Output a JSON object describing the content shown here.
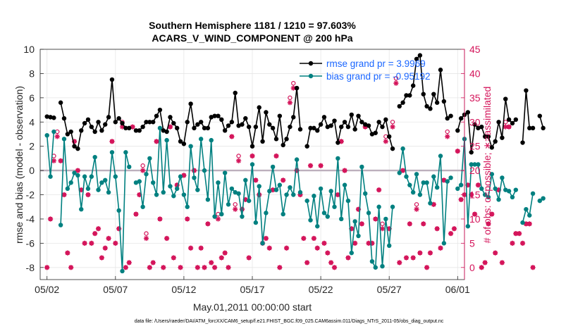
{
  "colors": {
    "rmse": "#000000",
    "bias": "#008080",
    "obs": "#d4145a",
    "zero_line": "#bdb0bd",
    "grid": "#e6e6e6",
    "axis": "#262626"
  },
  "chart_data": {
    "type": "line",
    "title_line1": "Southern Hemisphere 1181 / 1210 = 97.603%",
    "title_line2": "ACARS_V_WIND_COMPONENT @ 200 hPa",
    "xlabel": "May.01,2011 00:00:00 start",
    "ylabel_left": "rmse and bias (model - observation)",
    "ylabel_right": "# of obs: o=possible; ∗=assimilated",
    "footer": "data file: /Users/raeder/DAI/ATM_forcXX/CAM6_setup/f.e21.FHIST_BGC.f09_025.CAM6assim.011/Diags_NTrS_2011-05/obs_diag_output.nc",
    "xlim": [
      0.5,
      31.5
    ],
    "x_ticks": [
      1,
      6,
      11,
      16,
      21,
      26,
      31
    ],
    "x_tick_labels": [
      "05/02",
      "05/07",
      "05/12",
      "05/17",
      "05/22",
      "05/27",
      "06/01"
    ],
    "ylim_left": [
      -9,
      10
    ],
    "y_ticks_left": [
      "-8",
      "-6",
      "-4",
      "-2",
      "0",
      "2",
      "4",
      "6",
      "8",
      "10"
    ],
    "ylim_right": [
      -2.5,
      45
    ],
    "y_ticks_right": [
      "0",
      "5",
      "10",
      "15",
      "20",
      "25",
      "30",
      "35",
      "40",
      "45"
    ],
    "grid": true,
    "legend_position": "top-right",
    "legend": [
      {
        "name": "rmse grand pr = 3.9969",
        "key": "rmse"
      },
      {
        "name": "bias grand pr = -0.95192",
        "key": "bias"
      }
    ],
    "series": [
      {
        "name": "rmse",
        "key": "rmse",
        "values": [
          4.45,
          4.4,
          4.35,
          null,
          5.6,
          4.3,
          3.0,
          3.2,
          2.0,
          1.8,
          3.3,
          3.9,
          4.2,
          3.6,
          3.2,
          4.0,
          3.3,
          3.8,
          4.4,
          7.5,
          4.0,
          4.3,
          3.9,
          3.5,
          3.5,
          null,
          3.3,
          3.3,
          3.6,
          4.0,
          4.0,
          4.0,
          4.5,
          5.0,
          3.3,
          3.2,
          4.4,
          3.9,
          3.5,
          2.4,
          2.2,
          4.0,
          5.5,
          3.5,
          3.8,
          4.0,
          3.5,
          3.5,
          4.4,
          4.5,
          4.5,
          4.2,
          3.3,
          3.7,
          4.0,
          6.4,
          3.7,
          3.8,
          4.3,
          3.6,
          2.0,
          3.6,
          5.2,
          2.4,
          4.8,
          3.8,
          3.5,
          2.6,
          4.5,
          2.1,
          2.6,
          3.6,
          4.4,
          6.8,
          3.4,
          null,
          2.0,
          3.5,
          3.5,
          3.3,
          3.8,
          4.4,
          3.6,
          3.7,
          4.1,
          2.3,
          3.6,
          4.0,
          3.6,
          4.6,
          3.4,
          4.5,
          4.0,
          3.8,
          3.7,
          3.0,
          3.1,
          4.0,
          3.6,
          4.2,
          2.8,
          1.8,
          null,
          5.3,
          5.6,
          6.2,
          6.2,
          7.0,
          9.2,
          9.5,
          6.3,
          5.3,
          5.1,
          6.3,
          5.6,
          8.3,
          5.7,
          4.3,
          4.5,
          null,
          3.3,
          4.3,
          4.6,
          4.8,
          1.5,
          3.8,
          3.5,
          3.6,
          2.8,
          2.8,
          1.9,
          2.4,
          4.0,
          2.7,
          5.9,
          4.2,
          3.9,
          4.2,
          null,
          2.3,
          6.6,
          3.5,
          3.5,
          null,
          4.5,
          3.5
        ]
      },
      {
        "name": "bias",
        "key": "bias",
        "values": [
          2.9,
          -0.5,
          3.2,
          null,
          -4.5,
          2.6,
          -1.5,
          -1.0,
          -0.2,
          -0.4,
          -3.2,
          -0.5,
          -1.5,
          -0.5,
          1.1,
          -1.6,
          -1.0,
          -0.8,
          -1.8,
          1.5,
          -0.5,
          -3.3,
          -8.3,
          1.5,
          0.3,
          null,
          -1.0,
          -0.9,
          -3.0,
          -0.3,
          1.0,
          -1.0,
          -2.0,
          3.5,
          -1.8,
          2.5,
          -1.3,
          -2.1,
          -1.5,
          -0.5,
          -2.0,
          -3.0,
          2.0,
          -0.6,
          -1.6,
          2.6,
          0.0,
          -2.4,
          2.5,
          -3.8,
          -1.0,
          -3.6,
          -0.2,
          -2.8,
          -1.5,
          -1.8,
          -1.9,
          -3.8,
          -0.8,
          -2.5,
          0.5,
          -4.3,
          -1.3,
          -6.0,
          -3.5,
          -1.7,
          0.3,
          -1.6,
          -1.2,
          -3.6,
          -2.0,
          -1.4,
          -2.0,
          0.9,
          -1.8,
          null,
          -2.5,
          -4.1,
          -2.1,
          -4.6,
          -1.5,
          -3.5,
          -3.8,
          -1.7,
          -3.0,
          1.0,
          -4.0,
          -1.2,
          -2.5,
          -6.8,
          -4.2,
          -5.4,
          0.3,
          -1.9,
          -3.5,
          -7.5,
          -8.0,
          -3.0,
          -7.9,
          -4.0,
          -6.2,
          -3.0,
          null,
          -0.2,
          1.8,
          -0.5,
          -1.2,
          -1.8,
          -0.3,
          -2.0,
          -1.0,
          -1.0,
          -2.7,
          -0.5,
          -1.4,
          1.2,
          -6.0,
          -0.9,
          -0.6,
          null,
          -1.5,
          -1.2,
          2.6,
          -4.6,
          0.5,
          0.5,
          0.5,
          -1.5,
          -2.0,
          -2.2,
          -0.3,
          -1.5,
          -2.4,
          -0.6,
          -1.6,
          -1.7,
          -2.2,
          -1.6,
          null,
          -4.3,
          -3.2,
          -3.7,
          -1.9,
          null,
          -2.5,
          -2.3
        ]
      },
      {
        "name": "possible",
        "key": "obs_possible",
        "values": [
          0,
          10,
          23,
          28,
          22,
          15,
          3,
          0,
          26,
          20,
          16,
          5,
          15,
          5,
          7,
          8,
          2,
          4,
          6,
          26,
          5,
          8,
          30,
          0,
          1,
          29,
          11,
          15,
          21,
          7,
          0,
          1,
          26,
          10,
          0,
          6,
          29,
          2,
          17,
          0,
          19,
          10,
          4,
          20,
          0,
          4,
          0,
          9,
          1,
          0,
          11,
          2,
          3,
          0,
          27,
          13,
          23,
          12,
          14,
          2,
          23,
          18,
          15,
          5,
          6,
          4,
          16,
          23,
          0,
          18,
          4,
          35,
          38,
          20,
          15,
          6,
          1,
          21,
          6,
          4,
          21,
          5,
          3,
          1,
          0,
          15,
          26,
          20,
          2,
          8,
          5,
          12,
          9,
          29,
          5,
          5,
          10,
          16,
          9,
          27,
          8,
          30,
          39,
          1,
          20,
          2,
          9,
          2,
          13,
          3,
          9,
          0,
          3,
          13,
          8,
          4,
          18,
          28,
          7,
          8,
          24,
          14,
          15,
          17,
          15,
          11,
          17,
          0,
          1,
          9,
          11,
          3,
          16,
          1,
          30,
          29,
          5,
          7,
          7,
          5,
          9,
          9,
          0
        ]
      },
      {
        "name": "assimilated",
        "key": "obs_assimilated",
        "values": [
          0,
          10,
          22,
          27,
          22,
          15,
          3,
          0,
          26,
          20,
          16,
          5,
          15,
          5,
          7,
          8,
          2,
          4,
          6,
          26,
          5,
          8,
          29,
          0,
          1,
          29,
          11,
          15,
          20,
          6,
          0,
          1,
          26,
          10,
          0,
          6,
          29,
          2,
          17,
          0,
          19,
          10,
          4,
          20,
          0,
          4,
          0,
          9,
          1,
          0,
          10,
          2,
          3,
          0,
          27,
          12,
          22,
          12,
          14,
          2,
          23,
          18,
          15,
          5,
          6,
          4,
          16,
          23,
          0,
          18,
          4,
          34,
          37,
          20,
          15,
          6,
          1,
          21,
          6,
          4,
          21,
          5,
          3,
          1,
          0,
          15,
          26,
          20,
          2,
          8,
          5,
          12,
          9,
          29,
          5,
          5,
          10,
          16,
          8,
          26,
          8,
          29,
          38,
          1,
          20,
          2,
          9,
          2,
          12,
          3,
          9,
          0,
          3,
          13,
          8,
          4,
          18,
          27,
          7,
          8,
          24,
          14,
          15,
          17,
          15,
          11,
          17,
          0,
          1,
          9,
          11,
          3,
          16,
          1,
          29,
          29,
          5,
          7,
          7,
          5,
          9,
          9,
          0
        ]
      }
    ]
  }
}
